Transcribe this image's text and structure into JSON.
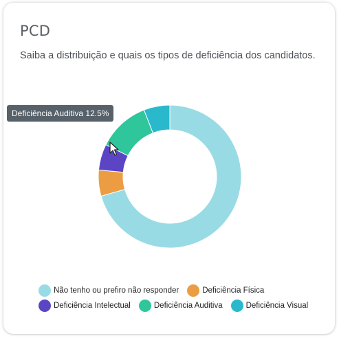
{
  "card": {
    "title": "PCD",
    "subtitle": "Saiba a distribuição e quais os tipos de deficiência dos candidatos."
  },
  "tooltip": {
    "text": "Deficiência Auditiva 12.5%"
  },
  "chart_data": {
    "type": "pie",
    "donut": true,
    "categories": [
      "Não tenho ou prefiro não responder",
      "Deficiência Física",
      "Deficiência Intelectual",
      "Deficiência Auditiva",
      "Deficiência Visual"
    ],
    "values": [
      75,
      6.25,
      6.25,
      12.5,
      6.25
    ],
    "unit": "%",
    "colors": [
      "#99dbe4",
      "#ec9d43",
      "#5b45c5",
      "#2fc69b",
      "#2ab9cc"
    ],
    "legend_position": "bottom"
  }
}
